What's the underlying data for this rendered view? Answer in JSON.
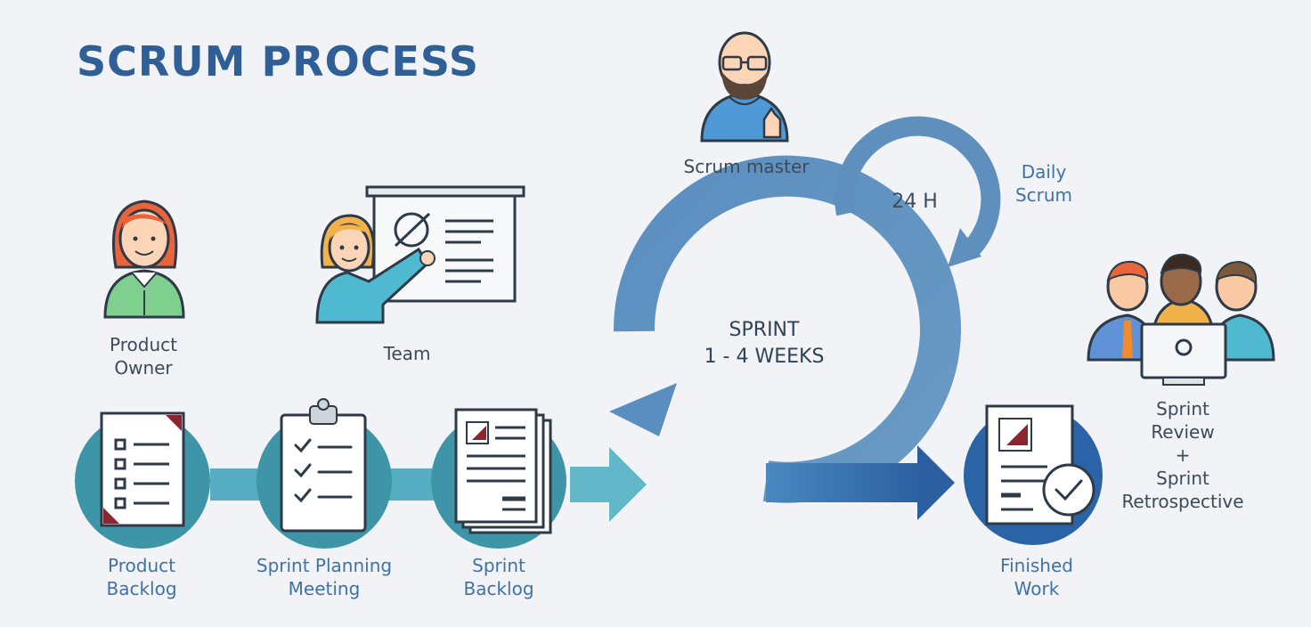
{
  "title": "SCRUM PROCESS",
  "roles": {
    "product_owner": [
      "Product",
      "Owner"
    ],
    "team": "Team",
    "scrum_master": "Scrum master"
  },
  "cycle": {
    "sprint_line1": "SPRINT",
    "sprint_line2": "1 - 4 WEEKS",
    "daily_hours": "24 H",
    "daily_line1": "Daily",
    "daily_line2": "Scrum"
  },
  "steps": {
    "product_backlog": [
      "Product",
      "Backlog"
    ],
    "sprint_planning": [
      "Sprint Planning",
      "Meeting"
    ],
    "sprint_backlog": [
      "Sprint",
      "Backlog"
    ],
    "finished_work": [
      "Finished",
      "Work"
    ],
    "review": [
      "Sprint",
      "Review",
      "+",
      "Sprint",
      "Retrospective"
    ]
  },
  "colors": {
    "title": "#2f5f96",
    "teal": "#3e94a7",
    "teal_light": "#5fb3c4",
    "loop_blue": "#5f8fbd",
    "dark_blue": "#2f63a3",
    "text": "#3d4a59",
    "label_blue": "#3f72a6"
  }
}
